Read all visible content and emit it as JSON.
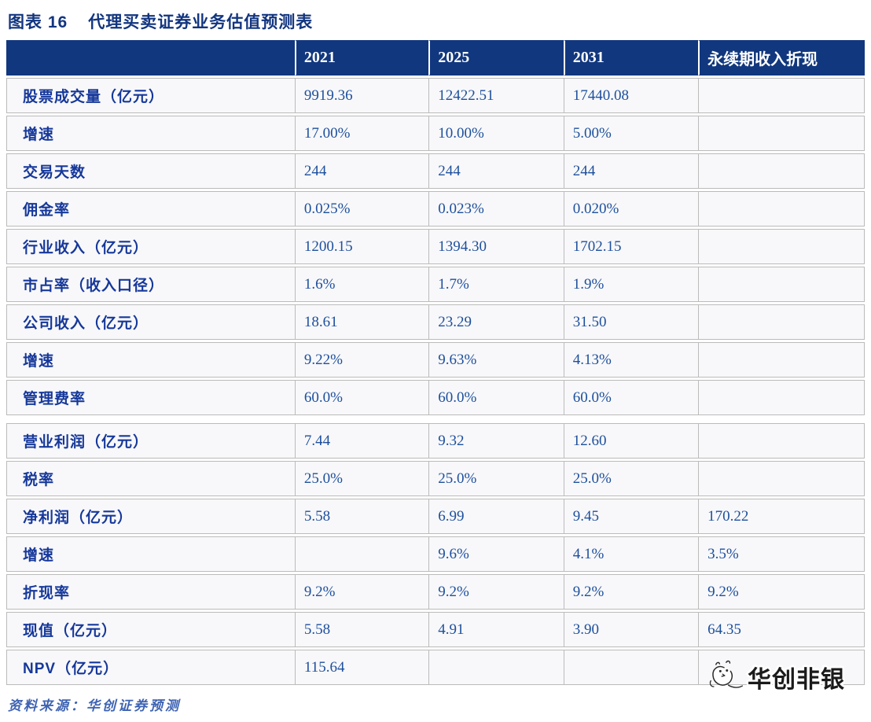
{
  "figure": {
    "label": "图表 16",
    "title": "代理买卖证券业务估值预测表"
  },
  "chart_data": {
    "type": "table",
    "title": "代理买卖证券业务估值预测表",
    "columns": [
      "",
      "2021",
      "2025",
      "2031",
      "永续期收入折现"
    ],
    "rows": [
      {
        "label": "股票成交量（亿元）",
        "values": [
          "9919.36",
          "12422.51",
          "17440.08",
          ""
        ]
      },
      {
        "label": "增速",
        "values": [
          "17.00%",
          "10.00%",
          "5.00%",
          ""
        ]
      },
      {
        "label": "交易天数",
        "values": [
          "244",
          "244",
          "244",
          ""
        ]
      },
      {
        "label": "佣金率",
        "values": [
          "0.025%",
          "0.023%",
          "0.020%",
          ""
        ]
      },
      {
        "label": "行业收入（亿元）",
        "values": [
          "1200.15",
          "1394.30",
          "1702.15",
          ""
        ]
      },
      {
        "label": "市占率（收入口径）",
        "values": [
          "1.6%",
          "1.7%",
          "1.9%",
          ""
        ]
      },
      {
        "label": "公司收入（亿元）",
        "values": [
          "18.61",
          "23.29",
          "31.50",
          ""
        ]
      },
      {
        "label": "增速",
        "values": [
          "9.22%",
          "9.63%",
          "4.13%",
          ""
        ]
      },
      {
        "label": "管理费率",
        "values": [
          "60.0%",
          "60.0%",
          "60.0%",
          ""
        ],
        "section_break_after": true
      },
      {
        "label": "营业利润（亿元）",
        "values": [
          "7.44",
          "9.32",
          "12.60",
          ""
        ]
      },
      {
        "label": "税率",
        "values": [
          "25.0%",
          "25.0%",
          "25.0%",
          ""
        ]
      },
      {
        "label": "净利润（亿元）",
        "values": [
          "5.58",
          "6.99",
          "9.45",
          "170.22"
        ]
      },
      {
        "label": "增速",
        "values": [
          "",
          "9.6%",
          "4.1%",
          "3.5%"
        ]
      },
      {
        "label": "折现率",
        "values": [
          "9.2%",
          "9.2%",
          "9.2%",
          "9.2%"
        ]
      },
      {
        "label": "现值（亿元）",
        "values": [
          "5.58",
          "4.91",
          "3.90",
          "64.35"
        ]
      },
      {
        "label": "NPV（亿元）",
        "values": [
          "115.64",
          "",
          "",
          ""
        ]
      }
    ]
  },
  "footer": {
    "source": "资料来源：华创证券预测"
  },
  "watermark": {
    "text": "华创非银"
  },
  "colors": {
    "header_bg": "#11377E",
    "header_text": "#FFFFFF",
    "label_text": "#16389A",
    "value_text": "#1D4F9C",
    "border": "#BBBBBB",
    "cell_bg": "#F8F8FA",
    "title_text": "#12357F",
    "source_text": "#3E63B2",
    "watermark_text": "#1A1A1A"
  }
}
